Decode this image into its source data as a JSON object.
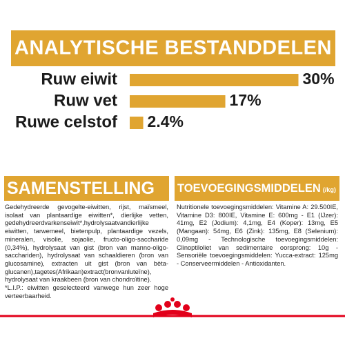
{
  "chart_data": {
    "type": "bar",
    "orientation": "horizontal",
    "title": "ANALYTISCHE BESTANDDELEN",
    "categories": [
      "Ruw eiwit",
      "Ruw vet",
      "Ruwe celstof"
    ],
    "values": [
      30,
      17,
      2.4
    ],
    "value_labels": [
      "30%",
      "17%",
      "2.4%"
    ],
    "color": "#e0a531"
  },
  "composition": {
    "title": "SAMENSTELLING",
    "text": "Gedehydreerde gevogelte-eiwitten, rijst, maïsmeel, isolaat van plantaardige eiwitten*, dierlijke vetten, gedehydreerdvarkenseiwit*,hydrolysaatvandierlijke eiwitten, tarwemeel, bietenpulp, plantaardige vezels, mineralen, visolie, sojaolie, fructo-oligo-saccharide (0,34%), hydrolysaat van gist (bron van manno-oligo-sacchariden), hydrolysaat van schaaldieren (bron van glucosamine), extracten uit gist (bron van bèta-glucanen),tagetes(Afrikaan)extract(bronvanluteïne), hydrolysaat van kraakbeen (bron van chondroïtine).",
    "note": "*L.I.P.: eiwitten geselecteerd vanwege hun zeer hoge verteerbaarheid."
  },
  "additives": {
    "title": "TOEVOEGINGSMIDDELEN",
    "unit": "(/kg)",
    "text": "Nutritionele toevoegingsmiddelen: Vitamine A: 29.500IE, Vitamine D3: 800IE, Vitamine E: 600mg - E1 (IJzer): 41mg, E2 (Jodium): 4,1mg, E4 (Koper): 13mg, E5 (Mangaan): 54mg, E6 (Zink): 135mg, E8 (Selenium): 0,09mg - Technologische toevoegingsmiddelen: Clinoptiloliet van sedimentaire oorsprong: 10g - Sensoriële toevoegingsmiddelen: Yucca-extract: 125mg - Conserveermiddelen - Antioxidanten."
  }
}
